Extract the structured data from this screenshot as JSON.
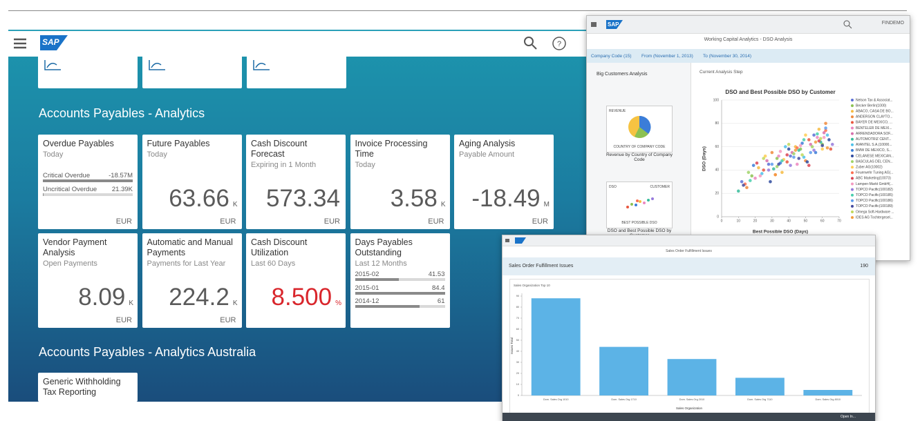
{
  "launchpad": {
    "groups": [
      {
        "title": "Accounts Payables - Analytics",
        "tiles": [
          {
            "title": "Overdue Payables",
            "subtitle": "Today",
            "currency": "EUR",
            "rows": [
              {
                "label": "Critical Overdue",
                "value": -18570000,
                "value_label": "-18.57M"
              },
              {
                "label": "Uncritical Overdue",
                "value": 21390,
                "value_label": "21.39K"
              }
            ]
          },
          {
            "title": "Future Payables",
            "subtitle": "Today",
            "value": "63.66",
            "unit": "K",
            "currency": "EUR"
          },
          {
            "title": "Cash Discount Forecast",
            "subtitle": "Expiring in 1 Month",
            "value": "573.34",
            "currency": "EUR"
          },
          {
            "title": "Invoice Processing Time",
            "subtitle": "Today",
            "value": "3.58",
            "unit": "K",
            "currency": "EUR"
          },
          {
            "title": "Aging Analysis",
            "subtitle": "Payable Amount",
            "value": "-18.49",
            "unit": "M",
            "currency": "EUR"
          },
          {
            "title": "Vendor Payment Analysis",
            "subtitle": "Open Payments",
            "value": "8.09",
            "unit": "K",
            "currency": "EUR"
          },
          {
            "title": "Automatic and Manual Payments",
            "subtitle": "Payments for Last Year",
            "value": "224.2",
            "unit": "K",
            "currency": "EUR"
          },
          {
            "title": "Cash Discount Utilization",
            "subtitle": "Last 60 Days",
            "value": "8.500",
            "unit": "%",
            "value_color": "#d9262c"
          },
          {
            "title": "Days Payables Outstanding",
            "subtitle": "Last 12 Months",
            "rows": [
              {
                "label": "2015-02",
                "value": 41.53
              },
              {
                "label": "2015-01",
                "value": 84.4
              },
              {
                "label": "2014-12",
                "value": 61
              }
            ]
          }
        ]
      },
      {
        "title": "Accounts Payables - Analytics Australia",
        "tiles": [
          {
            "title": "Generic Withholding Tax Reporting"
          }
        ]
      }
    ]
  },
  "dso_window": {
    "user": "FINDEMO",
    "title": "Working Capital Analytics - DSO Analysis",
    "filters": [
      "Company Code (15)",
      "From (November 1, 2013)",
      "To (November 30, 2014)"
    ],
    "analysis_path": "Big Customers Analysis",
    "current_step": "Current Analysis Step",
    "steps": [
      {
        "top_left": "REVENUE",
        "bottom": "COUNTRY OF COMPANY CODE",
        "caption": "Revenue by Country of Company Code"
      },
      {
        "top_left": "DSO",
        "top_right": "CUSTOMER",
        "bottom": "BEST POSSIBLE DSO",
        "caption": "DSO and Best Possible DSO by Customer"
      }
    ],
    "chart_data": {
      "type": "scatter",
      "title": "DSO and Best Possible DSO by Customer",
      "x_label": "Best Possible DSO (Days)",
      "y_label": "DSO (Days)",
      "xlim": [
        0,
        70
      ],
      "xticks": [
        0,
        10,
        20,
        30,
        40,
        50,
        60,
        70
      ],
      "ylim": [
        0,
        100
      ],
      "yticks": [
        0,
        20,
        40,
        60,
        80,
        100
      ],
      "series": [
        {
          "name": "Nelson Tax & Associat...",
          "color": "#5b6fd6",
          "x": [
            12,
            28,
            41,
            55
          ],
          "values": [
            30,
            45,
            52,
            70
          ]
        },
        {
          "name": "Becker Berlin(1000)",
          "color": "#8cc152",
          "x": [
            18,
            33,
            47,
            60
          ],
          "values": [
            35,
            50,
            58,
            62
          ]
        },
        {
          "name": "ABACO, CASA DE BO...",
          "color": "#f6bb42",
          "x": [
            22,
            36,
            44,
            58
          ],
          "values": [
            42,
            38,
            60,
            75
          ]
        },
        {
          "name": "ANDERSON CLAYTO...",
          "color": "#f08a3c",
          "x": [
            15,
            30,
            50,
            62
          ],
          "values": [
            25,
            55,
            48,
            80
          ]
        },
        {
          "name": "BAYER DE MEXICO, ...",
          "color": "#e9573f",
          "x": [
            25,
            39,
            52,
            65
          ],
          "values": [
            40,
            47,
            66,
            58
          ]
        },
        {
          "name": "BENTELER DE MEXI...",
          "color": "#ec87c0",
          "x": [
            20,
            34,
            45,
            57
          ],
          "values": [
            33,
            52,
            45,
            68
          ]
        },
        {
          "name": "ARRENDADORA SOF...",
          "color": "#d770ad",
          "x": [
            27,
            42,
            53,
            61
          ],
          "values": [
            48,
            55,
            62,
            72
          ]
        },
        {
          "name": "AUTOMOTRIZ CENT...",
          "color": "#37bc9b",
          "x": [
            10,
            31,
            46,
            59
          ],
          "values": [
            22,
            41,
            57,
            64
          ]
        },
        {
          "name": "AVANTEL S.A.(10000...",
          "color": "#4fc1e9",
          "x": [
            24,
            38,
            49,
            63
          ],
          "values": [
            37,
            60,
            51,
            70
          ]
        },
        {
          "name": "BMW DE MEXICO, S...",
          "color": "#3b7dd8",
          "x": [
            19,
            35,
            48,
            56
          ],
          "values": [
            44,
            46,
            63,
            55
          ]
        },
        {
          "name": "CELANESE MEXICAN...",
          "color": "#2e4a9e",
          "x": [
            29,
            40,
            51,
            64
          ],
          "values": [
            30,
            58,
            47,
            66
          ]
        },
        {
          "name": "BASCULAS DEL CEN...",
          "color": "#a0d468",
          "x": [
            16,
            33,
            43,
            54
          ],
          "values": [
            38,
            43,
            54,
            60
          ]
        },
        {
          "name": "Zuber AG(10002)",
          "color": "#ffce54",
          "x": [
            26,
            37,
            50,
            60
          ],
          "values": [
            52,
            49,
            70,
            58
          ]
        },
        {
          "name": "Feuerwehr Tuning AG(...",
          "color": "#fc6e51",
          "x": [
            14,
            32,
            45,
            62
          ],
          "values": [
            28,
            36,
            59,
            74
          ]
        },
        {
          "name": "ABC Marketing(10073)",
          "color": "#da4453",
          "x": [
            21,
            39,
            52,
            58
          ],
          "values": [
            46,
            53,
            44,
            65
          ]
        },
        {
          "name": "Lampen-Markt GmbH(...",
          "color": "#f49ac1",
          "x": [
            23,
            35,
            47,
            61
          ],
          "values": [
            35,
            56,
            61,
            68
          ]
        },
        {
          "name": "TOPCO Pacific(100182)",
          "color": "#967adc",
          "x": [
            28,
            41,
            55,
            66
          ],
          "values": [
            40,
            44,
            57,
            62
          ]
        },
        {
          "name": "TOPCO Pacific(100185)",
          "color": "#48cfad",
          "x": [
            17,
            36,
            49,
            57
          ],
          "values": [
            31,
            48,
            66,
            71
          ]
        },
        {
          "name": "TOPCO Pacific(100186)",
          "color": "#5d9cec",
          "x": [
            30,
            43,
            53,
            62
          ],
          "values": [
            45,
            51,
            55,
            76
          ]
        },
        {
          "name": "TOPCO Pacific(100189)",
          "color": "#434a9e",
          "x": [
            13,
            34,
            46,
            60
          ],
          "values": [
            27,
            45,
            50,
            61
          ]
        },
        {
          "name": "Omega Soft-Hardware ...",
          "color": "#c1d85a",
          "x": [
            25,
            40,
            48,
            59
          ],
          "values": [
            50,
            62,
            53,
            67
          ]
        },
        {
          "name": "IDES AG Tochtergesel...",
          "color": "#f39c3c",
          "x": [
            32,
            44,
            56,
            63
          ],
          "values": [
            36,
            57,
            64,
            59
          ]
        }
      ]
    }
  },
  "sales_window": {
    "title": "Sales Order Fulfillment Issues",
    "heading": "Sales Order Fulfillment Issues",
    "count": 190,
    "selector": "Sales Organization Top 10",
    "footer": "Open In...",
    "chart_data": {
      "type": "bar",
      "x_label": "Sales Organization",
      "y_label": "Issues Total",
      "color": "#5cb3e6",
      "categories": [
        "Dom. Sales Org 1010",
        "Dom. Sales Org 1710",
        "Dom. Sales Org 2010",
        "Dom. Sales Org 7110",
        "Dom. Sales Org 8010"
      ],
      "values": [
        88,
        44,
        33,
        16,
        5
      ],
      "ylim": [
        0,
        90
      ],
      "yticks": [
        0,
        10,
        20,
        30,
        40,
        50,
        60,
        70,
        80,
        90
      ]
    }
  }
}
